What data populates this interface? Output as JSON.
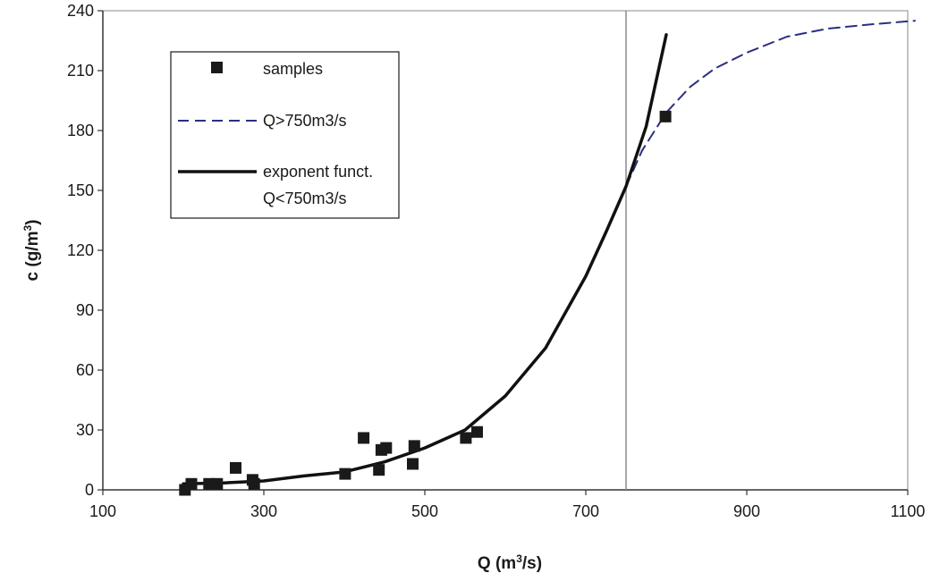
{
  "chart_data": {
    "type": "scatter",
    "xlabel": "Q (m",
    "xlabel_sup": "3",
    "xlabel_end": "/s)",
    "ylabel": "c (g/m",
    "ylabel_sup": "3",
    "ylabel_end": ")",
    "xlim": [
      100,
      1100
    ],
    "ylim": [
      0,
      240
    ],
    "xticks": [
      100,
      300,
      500,
      700,
      900,
      1100
    ],
    "yticks": [
      0,
      30,
      60,
      90,
      120,
      150,
      180,
      210,
      240
    ],
    "grid": false,
    "vertical_line_x": 750,
    "legend_position": "top-left",
    "series": [
      {
        "name": "samples",
        "kind": "scatter",
        "color": "#1a1a1a",
        "x": [
          202,
          210,
          232,
          242,
          265,
          286,
          288,
          401,
          424,
          443,
          446,
          452,
          485,
          487,
          551,
          565,
          799
        ],
        "y": [
          0,
          3,
          3,
          3,
          11,
          5,
          3,
          8,
          26,
          10,
          20,
          21,
          13,
          22,
          26,
          29,
          187
        ]
      },
      {
        "name": "Q>750m3/s",
        "kind": "dashed-line",
        "color": "#2b2f80",
        "x": [
          750,
          770,
          800,
          830,
          860,
          900,
          950,
          1000,
          1050,
          1110
        ],
        "y": [
          152,
          170,
          189,
          202,
          211,
          219,
          227,
          231,
          233,
          235
        ]
      },
      {
        "name": "exponent funct.",
        "name_line2": "Q<750m3/s",
        "kind": "solid-line",
        "color": "#111111",
        "x": [
          200,
          250,
          300,
          350,
          400,
          450,
          500,
          550,
          600,
          650,
          700,
          725,
          750,
          775,
          800
        ],
        "y": [
          3,
          3.5,
          4.5,
          7,
          9,
          14,
          21,
          30,
          47,
          71,
          107,
          129,
          152,
          182,
          228
        ]
      }
    ]
  }
}
